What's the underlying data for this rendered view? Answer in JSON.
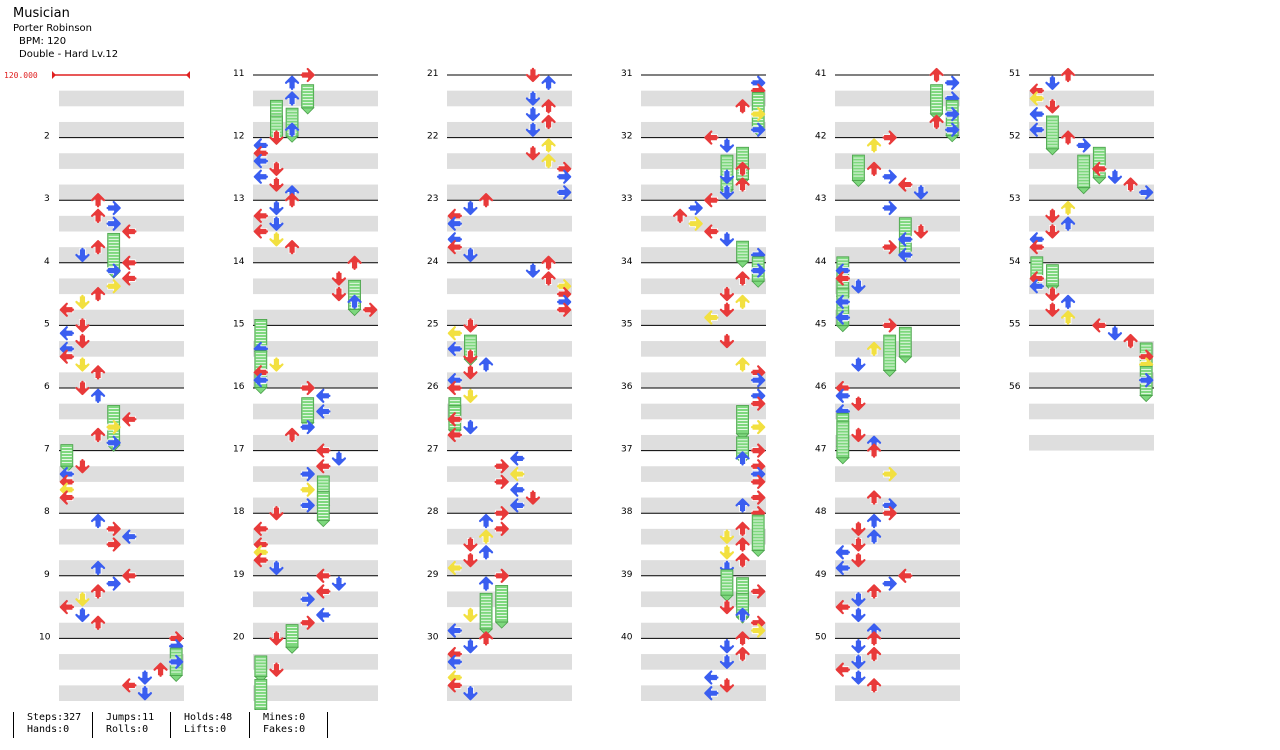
{
  "song": {
    "title": "Musician",
    "artist": "Porter Robinson",
    "bpm_label": "BPM: 120",
    "difficulty": "Double - Hard Lv.12"
  },
  "bpm_marker": "120.000",
  "stats": {
    "steps": "Steps:327",
    "hands": "Hands:0",
    "jumps": "Jumps:11",
    "rolls": "Rolls:0",
    "holds": "Holds:48",
    "lifts": "Lifts:0",
    "mines": "Mines:0",
    "fakes": "Fakes:0"
  },
  "measure_numbers": [
    "2",
    "3",
    "4",
    "5",
    "6",
    "7",
    "8",
    "9",
    "10",
    "11",
    "12",
    "13",
    "14",
    "15",
    "16",
    "17",
    "18",
    "19",
    "20",
    "21",
    "22",
    "23",
    "24",
    "25",
    "26",
    "27",
    "28",
    "29",
    "30",
    "31",
    "32",
    "33",
    "34",
    "35",
    "36",
    "37",
    "38",
    "39",
    "40",
    "41",
    "42",
    "43",
    "44",
    "45",
    "46",
    "47",
    "48",
    "49",
    "50",
    "51",
    "52",
    "53",
    "54",
    "55",
    "56"
  ],
  "colors": {
    "quarter": "#e83a3a",
    "eighth": "#3a5ef0",
    "sixteenth": "#f2e040",
    "hold": "#7ed87e",
    "band": "#dedede",
    "bpm": "#e02020"
  },
  "chart_data": {
    "type": "table",
    "columns": 6,
    "measures_per_column": 10,
    "lanes": [
      "left-1",
      "down-1",
      "up-1",
      "right-1",
      "left-2",
      "down-2",
      "up-2",
      "right-2"
    ],
    "notes": [
      [
        "3",
        6,
        0
      ],
      [
        "3",
        7,
        1
      ],
      [
        "3",
        7,
        2
      ],
      [
        "3",
        8,
        3
      ],
      [
        "3",
        9,
        2
      ],
      [
        "3",
        9,
        3
      ],
      [
        "3",
        10,
        2
      ],
      [
        "3",
        10,
        3
      ],
      [
        "4",
        0,
        0
      ],
      [
        "4",
        2,
        4
      ],
      [
        "4",
        3,
        1
      ],
      [
        "4",
        4,
        3
      ],
      [
        "4",
        5,
        2
      ],
      [
        "5",
        0,
        3
      ],
      [
        "5",
        1,
        4
      ],
      [
        "5",
        2,
        6
      ],
      [
        "5",
        3,
        4
      ],
      [
        "5",
        4,
        5
      ],
      [
        "5",
        5,
        4
      ],
      [
        "5",
        6,
        5
      ],
      [
        "5",
        6,
        6
      ],
      [
        "6",
        0,
        7
      ],
      [
        "6",
        0,
        7
      ],
      [
        "6",
        1,
        6
      ],
      [
        "6",
        2,
        5
      ],
      [
        "6",
        4,
        6
      ],
      [
        "7",
        0,
        4
      ],
      [
        "7",
        0,
        5
      ],
      [
        "7",
        1,
        2
      ],
      [
        "7",
        2,
        3
      ],
      [
        "7",
        3,
        1
      ],
      [
        "7",
        4,
        2
      ],
      [
        "7",
        5,
        1
      ],
      [
        "8",
        0,
        0
      ],
      [
        "8",
        1,
        0
      ],
      [
        "8",
        2,
        3
      ],
      [
        "8",
        3,
        1
      ],
      [
        "8",
        4,
        3
      ],
      [
        "9",
        0,
        2
      ],
      [
        "9",
        0,
        4
      ],
      [
        "9",
        1,
        3
      ],
      [
        "9",
        3,
        4
      ],
      [
        "9",
        4,
        5
      ],
      [
        "9",
        5,
        6
      ],
      [
        "9",
        5,
        7
      ],
      [
        "10",
        0,
        5
      ],
      [
        "10",
        0,
        6
      ],
      [
        "10",
        0,
        7
      ],
      [
        "10",
        2,
        6
      ],
      [
        "10",
        2,
        4
      ],
      [
        "10",
        3,
        5
      ],
      [
        "10",
        4,
        3
      ]
    ]
  }
}
